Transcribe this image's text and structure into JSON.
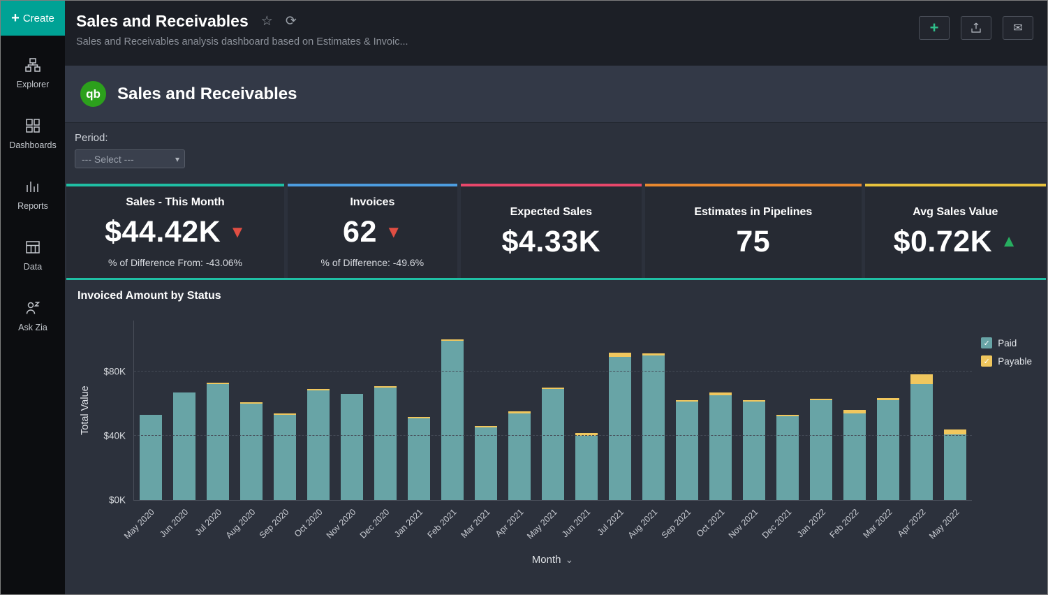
{
  "sidebar": {
    "create": {
      "label": "Create",
      "plus": "+"
    },
    "items": [
      {
        "label": "Explorer",
        "icon": "explorer-icon"
      },
      {
        "label": "Dashboards",
        "icon": "dashboards-icon"
      },
      {
        "label": "Reports",
        "icon": "reports-icon"
      },
      {
        "label": "Data",
        "icon": "data-icon"
      },
      {
        "label": "Ask Zia",
        "icon": "ask-zia-icon"
      }
    ]
  },
  "topbar": {
    "title": "Sales and Receivables",
    "subtitle": "Sales and Receivables analysis dashboard based on Estimates & Invoic...",
    "icons": {
      "star": "☆",
      "refresh": "⟳",
      "add": "+",
      "mail": "✉"
    }
  },
  "dashboard": {
    "logo_text": "qb",
    "title": "Sales and Receivables",
    "filter": {
      "label": "Period:",
      "selected": "--- Select ---",
      "caret": "▾"
    }
  },
  "kpis": [
    {
      "title": "Sales - This Month",
      "value": "$44.42K",
      "arrow": "▼",
      "trend": "down",
      "note": "% of Difference From: -43.06%",
      "accent": "#1fbfa4"
    },
    {
      "title": "Invoices",
      "value": "62",
      "arrow": "▼",
      "trend": "down",
      "note": "% of Difference: -49.6%",
      "accent": "#4d9de0"
    },
    {
      "title": "Expected Sales",
      "value": "$4.33K",
      "accent": "#e8476b"
    },
    {
      "title": "Estimates in Pipelines",
      "value": "75",
      "accent": "#e8882f"
    },
    {
      "title": "Avg Sales Value",
      "value": "$0.72K",
      "arrow": "▲",
      "trend": "up",
      "accent": "#e8c33d"
    }
  ],
  "chart_data": {
    "type": "bar",
    "stacked": true,
    "title": "Invoiced Amount by Status",
    "xlabel": "Month",
    "ylabel": "Total Value",
    "unit": "$K",
    "ylim": [
      0,
      112
    ],
    "grid": "dashed-horizontal",
    "legend_position": "top-right",
    "legend_check": "✓",
    "x_caret": "⌄",
    "yticks": [
      {
        "label": "$0K",
        "value": 0
      },
      {
        "label": "$40K",
        "value": 40
      },
      {
        "label": "$80K",
        "value": 80
      }
    ],
    "categories": [
      "May 2020",
      "Jun 2020",
      "Jul 2020",
      "Aug 2020",
      "Sep 2020",
      "Oct 2020",
      "Nov 2020",
      "Dec 2020",
      "Jan 2021",
      "Feb 2021",
      "Mar 2021",
      "Apr 2021",
      "May 2021",
      "Jun 2021",
      "Jul 2021",
      "Aug 2021",
      "Sep 2021",
      "Oct 2021",
      "Nov 2021",
      "Dec 2021",
      "Jan 2022",
      "Feb 2022",
      "Mar 2022",
      "Apr 2022",
      "May 2022"
    ],
    "series": [
      {
        "name": "Paid",
        "color": "#68a4a6",
        "values": [
          53,
          67,
          72,
          60,
          53,
          68,
          66,
          70,
          51,
          99,
          45,
          54,
          69,
          40,
          89,
          90,
          61,
          65,
          61,
          52,
          62,
          54,
          62,
          72,
          41
        ]
      },
      {
        "name": "Payable",
        "color": "#f0c75e",
        "values": [
          0,
          0,
          1,
          1,
          1,
          1,
          0,
          0.5,
          0.5,
          1,
          1,
          1,
          1,
          1.5,
          2.5,
          1,
          1,
          2,
          1,
          1,
          1,
          2,
          1.5,
          6,
          3
        ]
      }
    ]
  }
}
